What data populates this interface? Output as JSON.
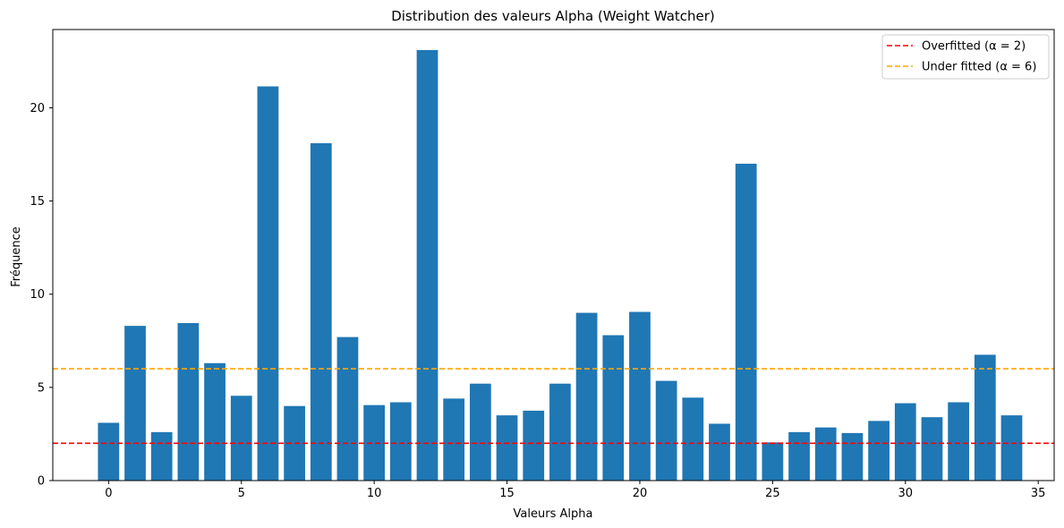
{
  "chart_data": {
    "type": "bar",
    "title": "Distribution des valeurs Alpha (Weight Watcher)",
    "xlabel": "Valeurs Alpha",
    "ylabel": "Fréquence",
    "xlim": [
      -2.1,
      35.6
    ],
    "ylim": [
      0,
      24.2
    ],
    "xticks": [
      0,
      5,
      10,
      15,
      20,
      25,
      30,
      35
    ],
    "yticks": [
      0,
      5,
      10,
      15,
      20
    ],
    "bar_color": "#1f77b4",
    "x": [
      0,
      1,
      2,
      3,
      4,
      5,
      6,
      7,
      8,
      9,
      10,
      11,
      12,
      13,
      14,
      15,
      16,
      17,
      18,
      19,
      20,
      21,
      22,
      23,
      24,
      25,
      26,
      27,
      28,
      29,
      30,
      31,
      32,
      33,
      34
    ],
    "values": [
      3.1,
      8.3,
      2.6,
      8.45,
      6.3,
      4.55,
      21.15,
      4.0,
      18.1,
      7.7,
      4.05,
      4.2,
      23.1,
      4.4,
      5.2,
      3.5,
      3.75,
      5.2,
      9.0,
      7.8,
      9.05,
      5.35,
      4.45,
      3.05,
      17.0,
      2.05,
      2.6,
      2.85,
      2.55,
      3.2,
      4.15,
      3.4,
      4.2,
      6.75,
      3.5
    ],
    "grid": false,
    "legend_position": "top-right",
    "reference_lines": [
      {
        "label": "Overfitted (α = 2)",
        "y": 2,
        "color": "#ff0000",
        "style": "dashed"
      },
      {
        "label": "Under fitted (α = 6)",
        "y": 6,
        "color": "#ffa500",
        "style": "dashed"
      }
    ]
  }
}
